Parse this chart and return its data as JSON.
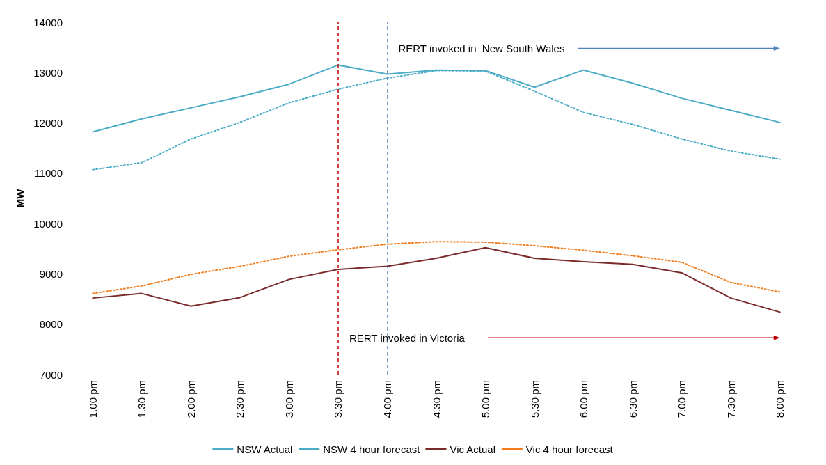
{
  "chart_data": {
    "type": "line",
    "ylabel": "MW",
    "categories": [
      "1.00 pm",
      "1.30 pm",
      "2.00 pm",
      "2.30 pm",
      "3.00 pm",
      "3.30 pm",
      "4.00 pm",
      "4.30 pm",
      "5.00 pm",
      "5.30 pm",
      "6.00 pm",
      "6.30 pm",
      "7.00 pm",
      "7.30 pm",
      "8.00 pm"
    ],
    "series": [
      {
        "name": "NSW Actual",
        "color": "#4bacc6",
        "line_style": "solid",
        "values": [
          11820,
          12080,
          12300,
          12520,
          12770,
          13150,
          12970,
          13050,
          13040,
          12710,
          13050,
          12790,
          12490,
          12250,
          12010
        ]
      },
      {
        "name": "NSW 4 hour forecast",
        "color": "#4bacc6",
        "line_style": "dotted",
        "values": [
          11070,
          11210,
          11680,
          12010,
          12400,
          12670,
          12890,
          13040,
          13030,
          12630,
          12210,
          11970,
          11680,
          11440,
          11280
        ]
      },
      {
        "name": "Vic Actual",
        "color": "#7b2a2a",
        "line_style": "solid",
        "values": [
          8520,
          8610,
          8360,
          8530,
          8890,
          9090,
          9150,
          9310,
          9520,
          9310,
          9240,
          9190,
          9020,
          8520,
          8240
        ]
      },
      {
        "name": "Vic 4 hour forecast",
        "color": "#f07c1c",
        "line_style": "dotted",
        "values": [
          8610,
          8760,
          8990,
          9150,
          9350,
          9480,
          9590,
          9640,
          9630,
          9560,
          9470,
          9360,
          9230,
          8830,
          8640
        ]
      }
    ],
    "ylim": [
      7000,
      14000
    ],
    "yticks": [
      7000,
      8000,
      9000,
      10000,
      11000,
      12000,
      13000,
      14000
    ],
    "grid": false,
    "legend": "bottom",
    "marker": "none",
    "ref_lines": [
      {
        "axis": "x",
        "value": "3.30 pm",
        "color": "#c00000",
        "line_style": "dashed"
      },
      {
        "axis": "x",
        "value": "4.00 pm",
        "color": "#4f81bd",
        "line_style": "dashed"
      }
    ],
    "annotations": [
      {
        "text": "RERT invoked in  New South Wales",
        "x": "4.00 pm",
        "y": 13480
      },
      {
        "text": "RERT invoked in Victoria",
        "x": "3.30 pm",
        "y": 7730
      }
    ]
  }
}
